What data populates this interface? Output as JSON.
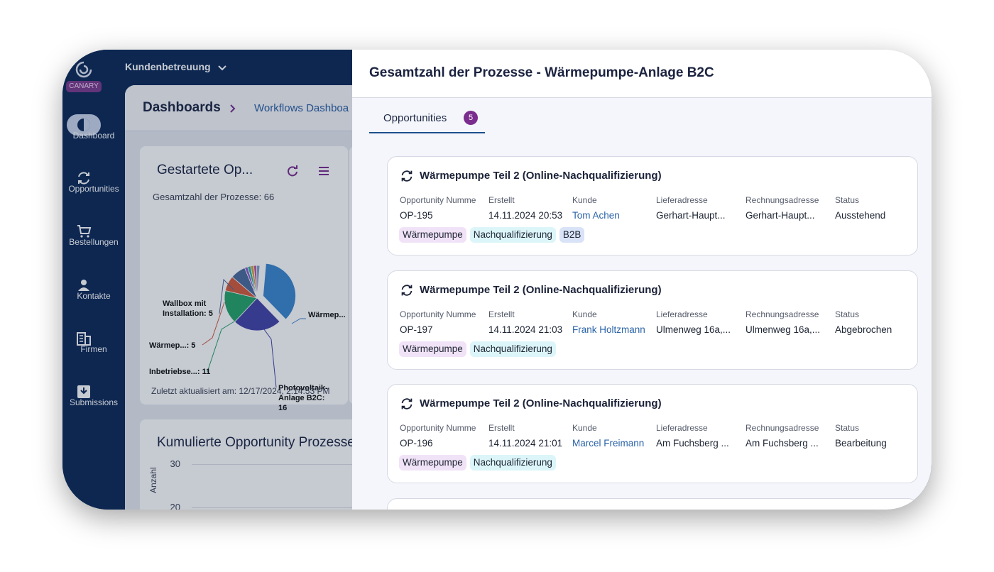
{
  "sidebar": {
    "brand": "CANARY",
    "items": [
      "Dashboard",
      "Opportunities",
      "Bestellungen",
      "Kontakte",
      "Firmen",
      "Submissions"
    ]
  },
  "topbar": {
    "workspace": "Kundenbetreuung"
  },
  "breadcrumb": {
    "root": "Dashboards",
    "current": "Workflows Dashboa"
  },
  "pie_widget": {
    "title": "Gestartete Op...",
    "subtitle": "Gesamtzahl der Prozesse: 66",
    "slices": [
      {
        "label": "Wärmep...",
        "value": 24,
        "color": "#3b86cf"
      },
      {
        "label": "Photovoltaik-Anlage B2C:",
        "value": 16,
        "color": "#4343a8"
      },
      {
        "label": "Inbetriebse...:",
        "value": 11,
        "color": "#26a36a"
      },
      {
        "label": "Wärmep...:",
        "value": 5,
        "color": "#d35b3c"
      },
      {
        "label": "Wallbox mit Installation:",
        "value": 5,
        "color": "#4b6b9c"
      },
      {
        "label": null,
        "value": 1,
        "color": "#8a5cc8"
      },
      {
        "label": null,
        "value": 1,
        "color": "#2bb3a0"
      },
      {
        "label": null,
        "value": 1,
        "color": "#d4a040"
      },
      {
        "label": null,
        "value": 1,
        "color": "#c05a9a"
      },
      {
        "label": null,
        "value": 1,
        "color": "#7aa0d0"
      }
    ],
    "footer": "Zuletzt aktualisiert am: 12/17/2024, 2:14:53 PM"
  },
  "line_widget": {
    "title": "Kumulierte Opportunity Prozesse",
    "yticks": [
      30,
      20
    ],
    "y_label": "Anzahl"
  },
  "panel": {
    "title": "Gesamtzahl der Prozesse - Wärmepumpe-Anlage B2C",
    "tab": {
      "label": "Opportunities",
      "count": 5
    },
    "cards": [
      {
        "title": "Wärmepumpe Teil 2 (Online-Nachqualifizierung)",
        "fields": [
          {
            "label": "Opportunity Numme",
            "value": "OP-195"
          },
          {
            "label": "Erstellt",
            "value": "14.11.2024 20:53"
          },
          {
            "label": "Kunde",
            "value": "Tom Achen"
          },
          {
            "label": "Lieferadresse",
            "value": "Gerhart-Haupt..."
          },
          {
            "label": "Rechnungsadresse",
            "value": "Gerhart-Haupt..."
          },
          {
            "label": "Status",
            "value": "Ausstehend"
          }
        ],
        "tags": [
          {
            "text": "Wärmepumpe",
            "bg": "#f1e3f7"
          },
          {
            "text": "Nachqualifizierung",
            "bg": "#dcf5f9"
          },
          {
            "text": "B2B",
            "bg": "#d9e3f7"
          }
        ]
      },
      {
        "title": "Wärmepumpe Teil 2 (Online-Nachqualifizierung)",
        "fields": [
          {
            "label": "Opportunity Numme",
            "value": "OP-197"
          },
          {
            "label": "Erstellt",
            "value": "14.11.2024 21:03"
          },
          {
            "label": "Kunde",
            "value": "Frank Holtzmann"
          },
          {
            "label": "Lieferadresse",
            "value": "Ulmenweg 16a,..."
          },
          {
            "label": "Rechnungsadresse",
            "value": "Ulmenweg 16a,..."
          },
          {
            "label": "Status",
            "value": "Abgebrochen"
          }
        ],
        "tags": [
          {
            "text": "Wärmepumpe",
            "bg": "#f1e3f7"
          },
          {
            "text": "Nachqualifizierung",
            "bg": "#dcf5f9"
          }
        ]
      },
      {
        "title": "Wärmepumpe Teil 2 (Online-Nachqualifizierung)",
        "fields": [
          {
            "label": "Opportunity Numme",
            "value": "OP-196"
          },
          {
            "label": "Erstellt",
            "value": "14.11.2024 21:01"
          },
          {
            "label": "Kunde",
            "value": "Marcel Freimann"
          },
          {
            "label": "Lieferadresse",
            "value": "Am Fuchsberg ..."
          },
          {
            "label": "Rechnungsadresse",
            "value": "Am Fuchsberg ..."
          },
          {
            "label": "Status",
            "value": "Bearbeitung"
          }
        ],
        "tags": [
          {
            "text": "Wärmepumpe",
            "bg": "#f1e3f7"
          },
          {
            "text": "Nachqualifizierung",
            "bg": "#dcf5f9"
          }
        ]
      }
    ]
  }
}
